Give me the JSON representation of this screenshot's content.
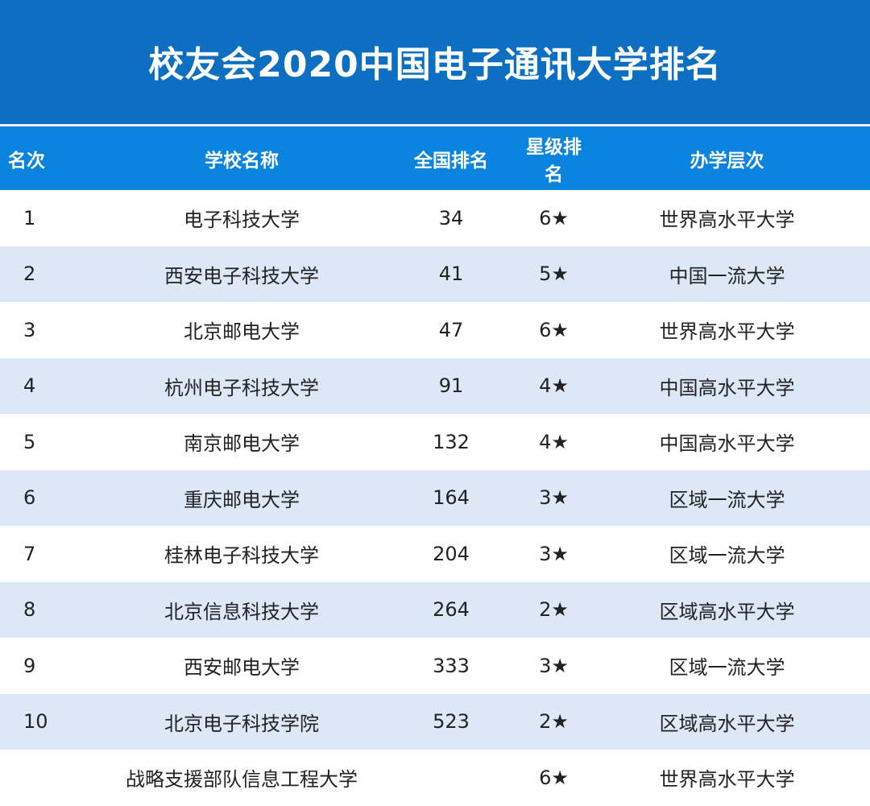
{
  "title": "校友会2020中国电子通讯大学排名",
  "columns": [
    "名次",
    "学校名称",
    "全国排名",
    "星级排名",
    "办学层次"
  ],
  "rows": [
    {
      "rank": "1",
      "name": "电子科技大学",
      "national": "34",
      "star": "6★",
      "level": "世界高水平大学"
    },
    {
      "rank": "2",
      "name": "西安电子科技大学",
      "national": "41",
      "star": "5★",
      "level": "中国一流大学"
    },
    {
      "rank": "3",
      "name": "北京邮电大学",
      "national": "47",
      "star": "6★",
      "level": "世界高水平大学"
    },
    {
      "rank": "4",
      "name": "杭州电子科技大学",
      "national": "91",
      "star": "4★",
      "level": "中国高水平大学"
    },
    {
      "rank": "5",
      "name": "南京邮电大学",
      "national": "132",
      "star": "4★",
      "level": "中国高水平大学"
    },
    {
      "rank": "6",
      "name": "重庆邮电大学",
      "national": "164",
      "star": "3★",
      "level": "区域一流大学"
    },
    {
      "rank": "7",
      "name": "桂林电子科技大学",
      "national": "204",
      "star": "3★",
      "level": "区域一流大学"
    },
    {
      "rank": "8",
      "name": "北京信息科技大学",
      "national": "264",
      "star": "2★",
      "level": "区域高水平大学"
    },
    {
      "rank": "9",
      "name": "西安邮电大学",
      "national": "333",
      "star": "3★",
      "level": "区域一流大学"
    },
    {
      "rank": "10",
      "name": "北京电子科技学院",
      "national": "523",
      "star": "2★",
      "level": "区域高水平大学"
    },
    {
      "rank": "",
      "name": "战略支援部队信息工程大学",
      "national": "",
      "star": "6★",
      "level": "世界高水平大学"
    }
  ],
  "colors": {
    "banner": "#0d6fc1",
    "header": "#0a84de",
    "stripe": "#dde8f6"
  }
}
